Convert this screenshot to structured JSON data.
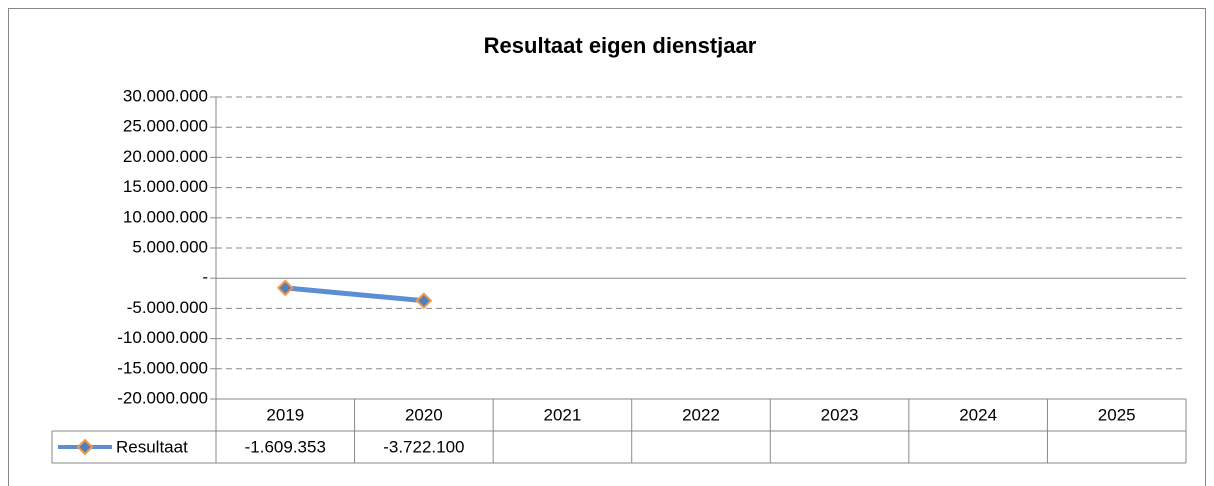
{
  "chart_data": {
    "type": "line",
    "title": "Resultaat eigen dienstjaar",
    "categories": [
      "2019",
      "2020",
      "2021",
      "2022",
      "2023",
      "2024",
      "2025"
    ],
    "series": [
      {
        "name": "Resultaat",
        "color": "#5b8fd4",
        "marker_color": "#4f81bd",
        "marker_edge_color": "#f79646",
        "values": [
          -1609353,
          -3722100,
          null,
          null,
          null,
          null,
          null
        ],
        "value_labels": [
          "-1.609.353",
          "-3.722.100",
          null,
          null,
          null,
          null,
          null
        ]
      }
    ],
    "ylim": [
      -20000000,
      30000000
    ],
    "yticks": [
      {
        "value": -20000000,
        "label": "-20.000.000"
      },
      {
        "value": -15000000,
        "label": "-15.000.000"
      },
      {
        "value": -10000000,
        "label": "-10.000.000"
      },
      {
        "value": -5000000,
        "label": "-5.000.000"
      },
      {
        "value": 0,
        "label": "-"
      },
      {
        "value": 5000000,
        "label": "5.000.000"
      },
      {
        "value": 10000000,
        "label": "10.000.000"
      },
      {
        "value": 15000000,
        "label": "15.000.000"
      },
      {
        "value": 20000000,
        "label": "20.000.000"
      },
      {
        "value": 25000000,
        "label": "25.000.000"
      },
      {
        "value": 30000000,
        "label": "30.000.000"
      }
    ],
    "grid": true,
    "data_table": true
  }
}
